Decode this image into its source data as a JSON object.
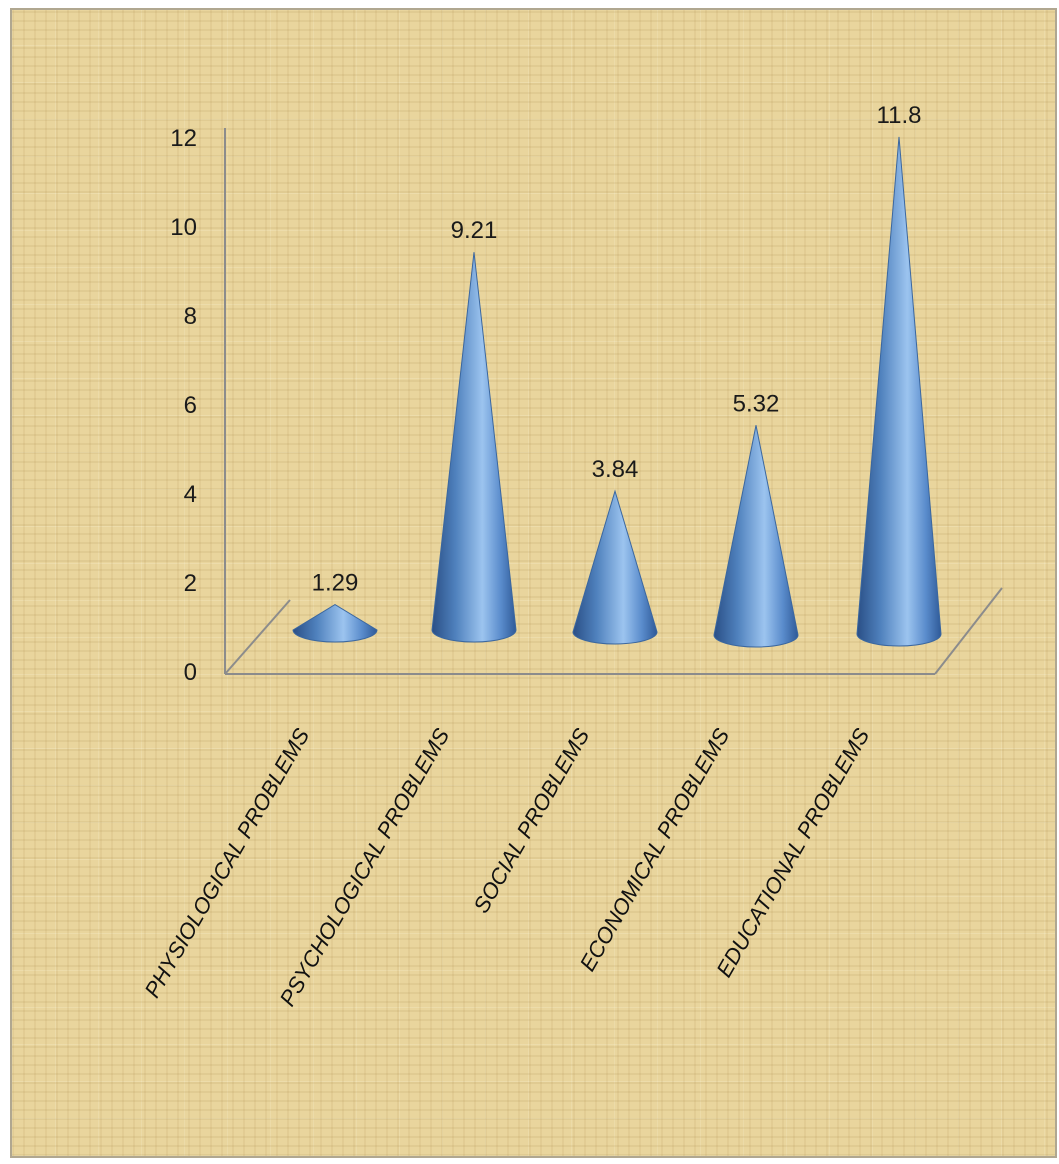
{
  "chart_data": {
    "type": "bar",
    "shape": "cone",
    "categories": [
      "PHYSIOLOGICAL PROBLEMS",
      "PSYCHOLOGICAL PROBLEMS",
      "SOCIAL PROBLEMS",
      "ECONOMICAL PROBLEMS",
      "EDUCATIONAL PROBLEMS"
    ],
    "values": [
      1.29,
      9.21,
      3.84,
      5.32,
      11.8
    ],
    "data_labels": [
      "1.29",
      "9.21",
      "3.84",
      "5.32",
      "11.8"
    ],
    "yticks": [
      "0",
      "2",
      "4",
      "6",
      "8",
      "10",
      "12"
    ],
    "ylim": [
      0,
      12
    ],
    "title": "",
    "xlabel": "",
    "ylabel": "",
    "legend": "none",
    "grid": false,
    "colors": {
      "cone": "#4f81bd",
      "cone_dark": "#2a4f86",
      "cone_light": "#9cc4ef",
      "axis": "#8c8c8c",
      "background": "#e9d59d"
    }
  }
}
